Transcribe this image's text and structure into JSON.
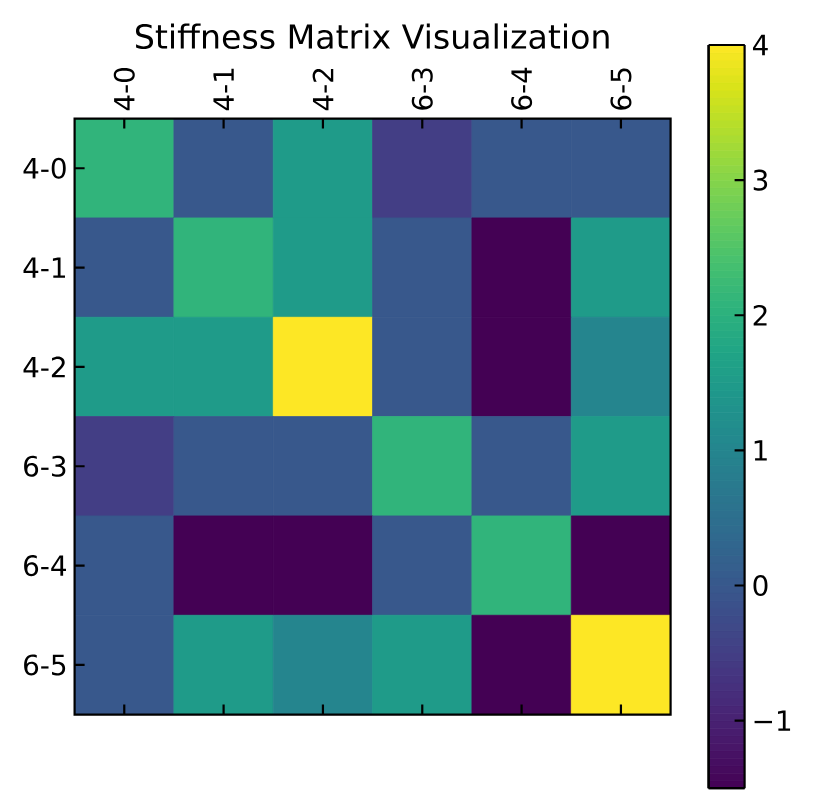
{
  "chart_data": {
    "type": "heatmap",
    "title": "Stiffness Matrix Visualization",
    "categories": [
      "4-0",
      "4-1",
      "4-2",
      "6-3",
      "6-4",
      "6-5"
    ],
    "y_categories": [
      "4-0",
      "4-1",
      "4-2",
      "6-3",
      "6-4",
      "6-5"
    ],
    "cells": [
      [
        2.1,
        0,
        1.5,
        -0.5,
        0,
        0
      ],
      [
        0,
        2.1,
        1.5,
        0,
        -1.5,
        1.5
      ],
      [
        1.5,
        1.5,
        4,
        0,
        -1.5,
        1
      ],
      [
        -0.5,
        0,
        0,
        2.1,
        0,
        1.5
      ],
      [
        0,
        -1.5,
        -1.5,
        0,
        2.1,
        -1.5
      ],
      [
        0,
        1.5,
        1,
        1.5,
        -1.5,
        4
      ]
    ],
    "clim": [
      -1.5,
      4
    ],
    "cticks": [
      {
        "value": -1,
        "label": "−1"
      },
      0,
      1,
      2,
      3,
      4
    ]
  }
}
